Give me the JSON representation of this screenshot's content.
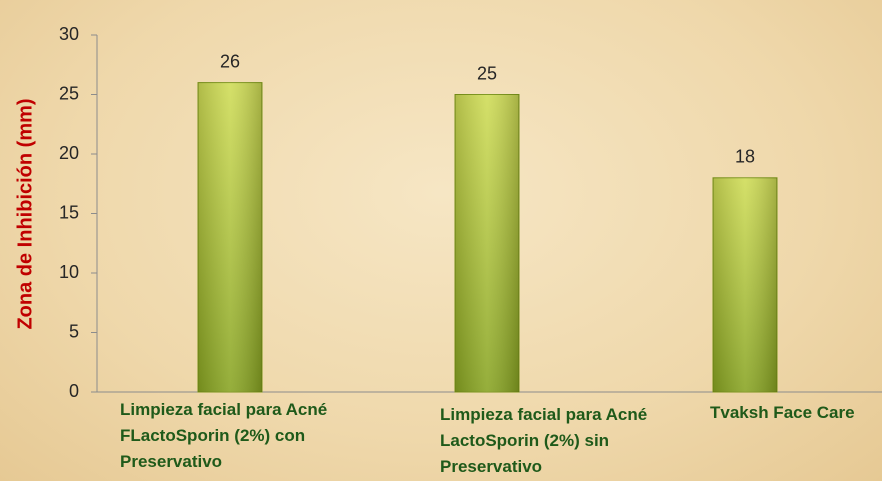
{
  "chart_data": {
    "type": "bar",
    "y_label": "Zona de Inhibición (mm)",
    "categories": [
      "Limpieza facial para Acné FLactoSporin (2%) con Preservativo",
      "Limpieza facial para Acné  LactoSporin (2%) sin Preservativo",
      "Tvaksh Face Care"
    ],
    "values": [
      26,
      25,
      18
    ],
    "color": "#a8bf35",
    "ylim": [
      0,
      30
    ],
    "yticks": [
      0,
      5,
      10,
      15,
      20,
      25,
      30
    ],
    "grid": false
  }
}
